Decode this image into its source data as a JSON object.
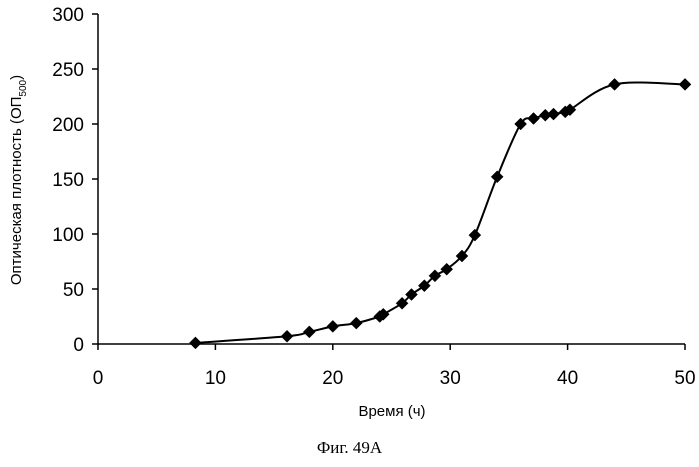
{
  "caption": "Фиг. 49А",
  "chart_data": {
    "type": "scatter",
    "xlabel": "Время (ч)",
    "ylabel": {
      "main": "Оптическая плотность (ОП",
      "sub": "500",
      "close": ")"
    },
    "xlim": [
      0,
      50
    ],
    "ylim": [
      0,
      300
    ],
    "xticks": [
      "0",
      "10",
      "20",
      "30",
      "40",
      "50"
    ],
    "yticks": [
      "0",
      "50",
      "100",
      "150",
      "200",
      "250",
      "300"
    ],
    "grid": false,
    "marker": "diamond",
    "line": "smooth",
    "color": "#000000",
    "series": [
      {
        "x": [
          8.3,
          16.1,
          18.0,
          20.0,
          22.0,
          24.0,
          24.3,
          25.9,
          26.7,
          27.8,
          28.7,
          29.7,
          31.0,
          32.1,
          34.0,
          36.0,
          37.1,
          38.1,
          38.8,
          39.8,
          40.2,
          44.0,
          50.0
        ],
        "y": [
          1,
          7,
          11,
          16,
          19,
          25,
          27,
          37,
          45,
          53,
          62,
          68,
          80,
          99,
          152,
          200,
          205,
          208,
          209,
          211,
          213,
          236,
          236
        ]
      }
    ]
  }
}
